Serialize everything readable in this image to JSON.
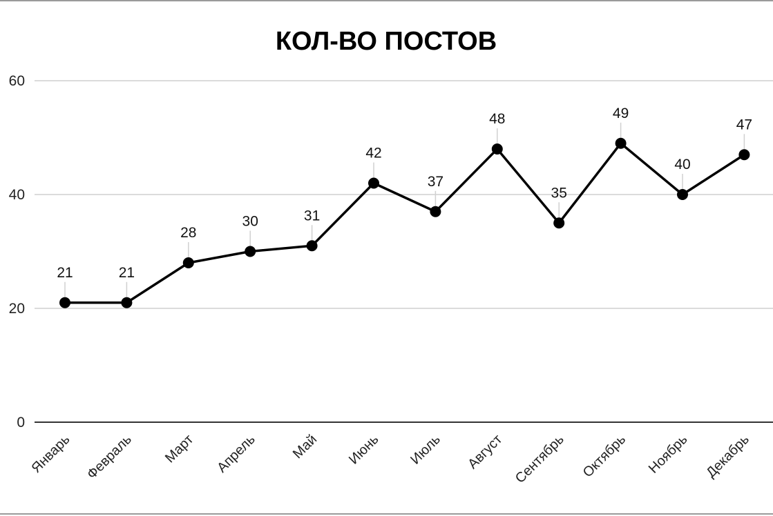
{
  "chart_data": {
    "type": "line",
    "title": "КОЛ-ВО ПОСТОВ",
    "xlabel": "",
    "ylabel": "",
    "categories": [
      "Январь",
      "Февраль",
      "Март",
      "Апрель",
      "Май",
      "Июнь",
      "Июль",
      "Август",
      "Сентябрь",
      "Октябрь",
      "Ноябрь",
      "Декабрь"
    ],
    "series": [
      {
        "values": [
          21,
          21,
          28,
          30,
          31,
          42,
          37,
          48,
          35,
          49,
          40,
          47
        ]
      }
    ],
    "ylim": [
      0,
      60
    ],
    "yticks": [
      0,
      20,
      40,
      60
    ],
    "grid": true,
    "legend": "none",
    "colors": {
      "line": "#000000",
      "grid": "#cfcfcf",
      "axis": "#333333"
    }
  }
}
